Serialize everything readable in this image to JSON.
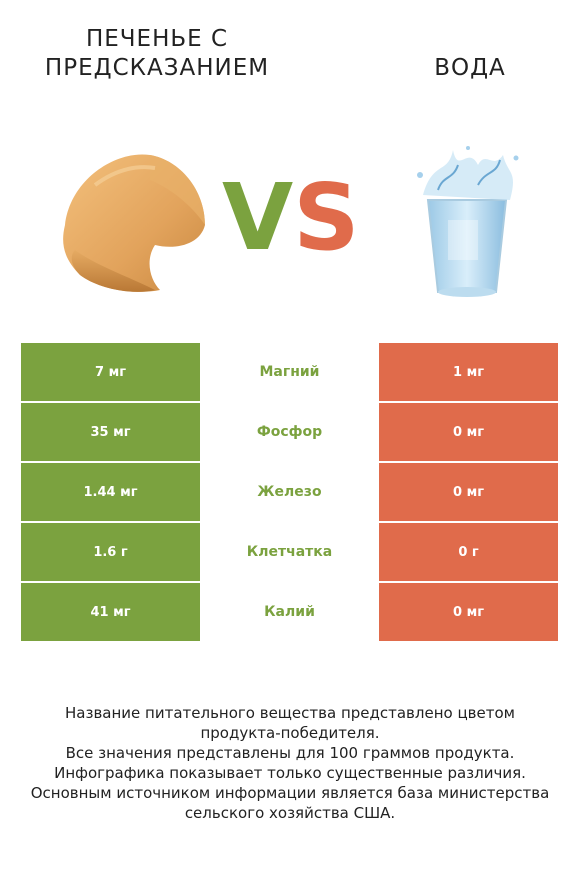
{
  "header": {
    "left_title_line1": "Печенье с",
    "left_title_line2": "предсказанием",
    "right_title": "Вода",
    "vs_v": "V",
    "vs_s": "S"
  },
  "colors": {
    "winner_left": "#7ba23f",
    "winner_right": "#e06b4b"
  },
  "rows": [
    {
      "left": "7 мг",
      "nutrient": "Магний",
      "right": "1 мг"
    },
    {
      "left": "35 мг",
      "nutrient": "Фосфор",
      "right": "0 мг"
    },
    {
      "left": "1.44 мг",
      "nutrient": "Железо",
      "right": "0 мг"
    },
    {
      "left": "1.6 г",
      "nutrient": "Клетчатка",
      "right": "0 г"
    },
    {
      "left": "41 мг",
      "nutrient": "Калий",
      "right": "0 мг"
    }
  ],
  "footer": {
    "line1": "Название питательного вещества представлено цветом",
    "line2": "продукта-победителя.",
    "line3": "Все значения представлены для 100 граммов продукта.",
    "line4": "Инфографика показывает только существенные различия.",
    "line5": "Основным источником информации является база министерства",
    "line6": "сельского хозяйства США."
  }
}
